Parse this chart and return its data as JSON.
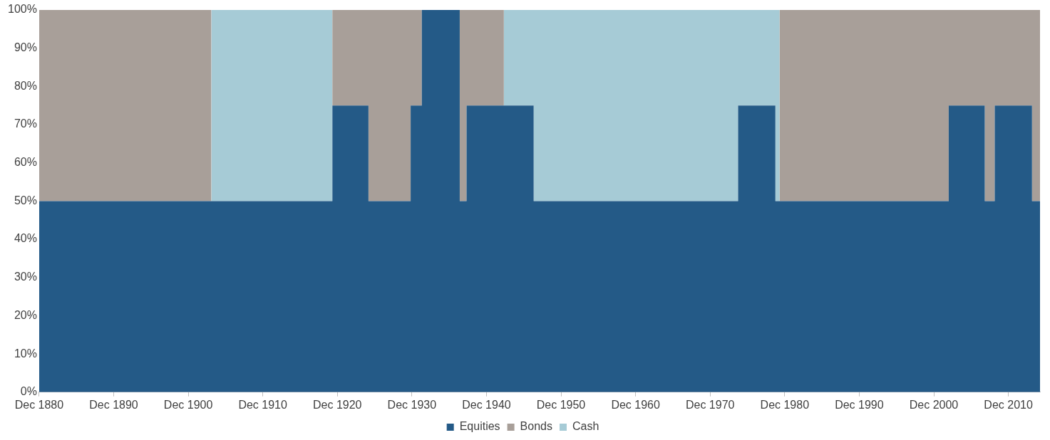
{
  "chart_data": {
    "type": "area",
    "stacked": true,
    "legend": "bottom",
    "grid": false,
    "x": [
      "1880-12",
      "1904-01",
      "1904-01",
      "1920-04",
      "1920-04",
      "1925-02",
      "1925-02",
      "1930-10",
      "1930-10",
      "1932-04",
      "1932-04",
      "1937-05",
      "1937-05",
      "1938-04",
      "1938-04",
      "1943-04",
      "1943-04",
      "1947-04",
      "1947-04",
      "1974-09",
      "1974-09",
      "1979-09",
      "1979-09",
      "1980-04",
      "1980-04",
      "2002-12",
      "2002-12",
      "2007-10",
      "2007-10",
      "2009-02",
      "2009-02",
      "2014-02",
      "2014-02",
      "2015-03"
    ],
    "series": [
      {
        "name": "Equities",
        "color": "#245a87",
        "values": [
          50,
          50,
          50,
          50,
          75,
          75,
          50,
          50,
          75,
          75,
          100,
          100,
          50,
          50,
          75,
          75,
          75,
          75,
          50,
          50,
          75,
          75,
          50,
          50,
          50,
          50,
          75,
          75,
          50,
          50,
          75,
          75,
          50,
          50
        ]
      },
      {
        "name": "Bonds",
        "color": "#a89f99",
        "values": [
          50,
          50,
          0,
          0,
          25,
          25,
          50,
          50,
          25,
          25,
          0,
          0,
          50,
          50,
          25,
          25,
          0,
          0,
          0,
          0,
          0,
          0,
          0,
          0,
          50,
          50,
          25,
          25,
          50,
          50,
          25,
          25,
          50,
          50
        ]
      },
      {
        "name": "Cash",
        "color": "#a6cbd6",
        "values": [
          null,
          null,
          50,
          50,
          null,
          null,
          null,
          null,
          null,
          null,
          null,
          null,
          null,
          null,
          null,
          null,
          25,
          25,
          50,
          50,
          25,
          25,
          50,
          50,
          null,
          null,
          null,
          null,
          null,
          null,
          null,
          null,
          null,
          null
        ]
      }
    ],
    "xlim": [
      "1880-12",
      "2015-03"
    ],
    "xticks": [
      {
        "value": "1880-12",
        "label": "Dec 1880"
      },
      {
        "value": "1890-12",
        "label": "Dec 1890"
      },
      {
        "value": "1900-12",
        "label": "Dec 1900"
      },
      {
        "value": "1910-12",
        "label": "Dec 1910"
      },
      {
        "value": "1920-12",
        "label": "Dec 1920"
      },
      {
        "value": "1930-12",
        "label": "Dec 1930"
      },
      {
        "value": "1940-12",
        "label": "Dec 1940"
      },
      {
        "value": "1950-12",
        "label": "Dec 1950"
      },
      {
        "value": "1960-12",
        "label": "Dec 1960"
      },
      {
        "value": "1970-12",
        "label": "Dec 1970"
      },
      {
        "value": "1980-12",
        "label": "Dec 1980"
      },
      {
        "value": "1990-12",
        "label": "Dec 1990"
      },
      {
        "value": "2000-12",
        "label": "Dec 2000"
      },
      {
        "value": "2010-12",
        "label": "Dec 2010"
      }
    ],
    "ylim": [
      0,
      100
    ],
    "yticks": [
      {
        "value": 0,
        "label": "0%"
      },
      {
        "value": 10,
        "label": "10%"
      },
      {
        "value": 20,
        "label": "20%"
      },
      {
        "value": 30,
        "label": "30%"
      },
      {
        "value": 40,
        "label": "40%"
      },
      {
        "value": 50,
        "label": "50%"
      },
      {
        "value": 60,
        "label": "60%"
      },
      {
        "value": 70,
        "label": "70%"
      },
      {
        "value": 80,
        "label": "80%"
      },
      {
        "value": 90,
        "label": "90%"
      },
      {
        "value": 100,
        "label": "100%"
      }
    ]
  }
}
